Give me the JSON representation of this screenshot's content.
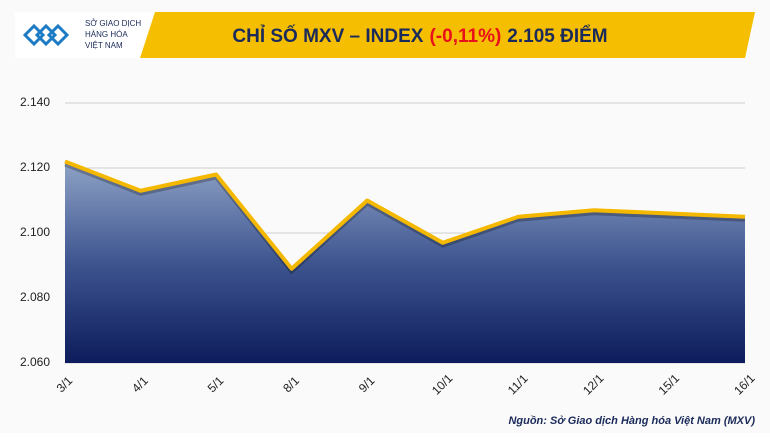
{
  "logo": [
    "SỞ GIAO DỊCH",
    "HÀNG HÓA",
    "VIỆT NAM"
  ],
  "chart_data": {
    "type": "area",
    "title": [
      "CHỈ SỐ MXV – INDEX",
      "(-0,11%)",
      "2.105 ĐIỂM"
    ],
    "title_colors": [
      "#1a2a5a",
      "#e8101a",
      "#1a2a5a"
    ],
    "categories": [
      "3/1",
      "4/1",
      "5/1",
      "8/1",
      "9/1",
      "10/1",
      "11/1",
      "12/1",
      "15/1",
      "16/1"
    ],
    "values": [
      2122,
      2113,
      2118,
      2089,
      2110,
      2097,
      2105,
      2107,
      2106,
      2105
    ],
    "line_color": "#f5b800",
    "ylim": [
      2060,
      2140
    ],
    "yticks": [
      {
        "value": 2060,
        "label": "2.060"
      },
      {
        "value": 2080,
        "label": "2.080"
      },
      {
        "value": 2100,
        "label": "2.100"
      },
      {
        "value": 2120,
        "label": "2.120"
      },
      {
        "value": 2140,
        "label": "2.140"
      }
    ],
    "grid": true,
    "source": "Nguồn: Sở Giao dịch Hàng hóa Việt Nam (MXV)"
  }
}
